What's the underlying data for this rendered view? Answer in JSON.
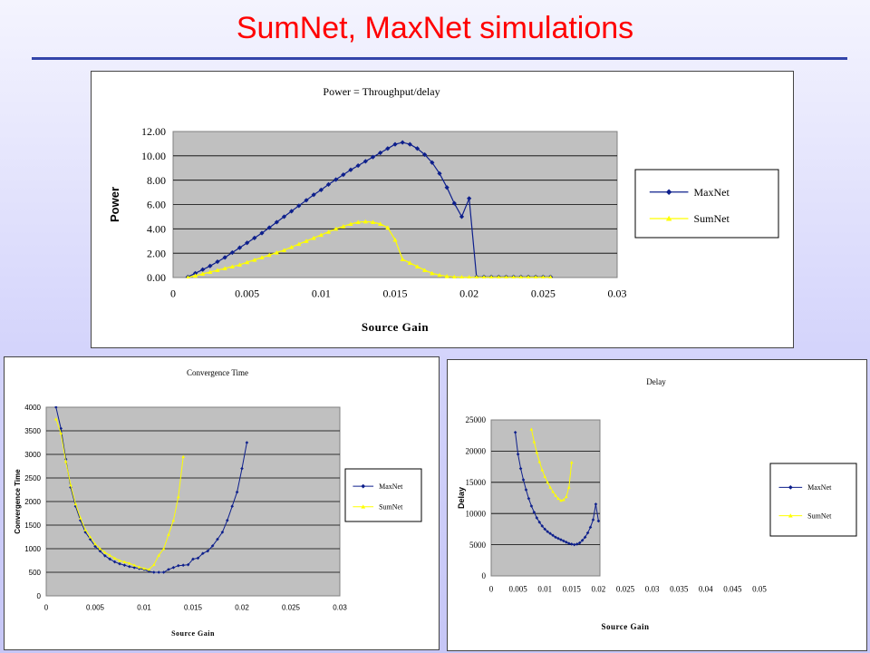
{
  "slide": {
    "title": "SumNet, MaxNet simulations"
  },
  "colors": {
    "maxnet": "#0d1f8c",
    "sumnet": "#ffff00",
    "plot_bg": "#c0c0c0"
  },
  "chart_data": [
    {
      "id": "power",
      "type": "line",
      "title": "Power = Throughput/delay",
      "xlabel": "Source Gain",
      "ylabel": "Power",
      "xlim": [
        0,
        0.03
      ],
      "ylim": [
        0,
        12
      ],
      "xticks": [
        "0",
        "0.005",
        "0.01",
        "0.015",
        "0.02",
        "0.025",
        "0.03"
      ],
      "yticks": [
        "0.00",
        "2.00",
        "4.00",
        "6.00",
        "8.00",
        "10.00",
        "12.00"
      ],
      "grid": true,
      "legend": "right",
      "series": [
        {
          "name": "MaxNet",
          "x": [
            0.001,
            0.0015,
            0.002,
            0.0025,
            0.003,
            0.0035,
            0.004,
            0.0045,
            0.005,
            0.0055,
            0.006,
            0.0065,
            0.007,
            0.0075,
            0.008,
            0.0085,
            0.009,
            0.0095,
            0.01,
            0.0105,
            0.011,
            0.0115,
            0.012,
            0.0125,
            0.013,
            0.0135,
            0.014,
            0.0145,
            0.015,
            0.0155,
            0.016,
            0.0165,
            0.017,
            0.0175,
            0.018,
            0.0185,
            0.019,
            0.0195,
            0.02,
            0.0205,
            0.021,
            0.0215,
            0.022,
            0.0225,
            0.023,
            0.0235,
            0.024,
            0.0245,
            0.025,
            0.0255
          ],
          "y": [
            0.05,
            0.35,
            0.65,
            0.95,
            1.3,
            1.65,
            2.05,
            2.45,
            2.85,
            3.25,
            3.65,
            4.1,
            4.55,
            5.0,
            5.45,
            5.9,
            6.35,
            6.8,
            7.2,
            7.65,
            8.05,
            8.45,
            8.85,
            9.2,
            9.55,
            9.9,
            10.25,
            10.6,
            10.95,
            11.1,
            10.95,
            10.6,
            10.1,
            9.45,
            8.55,
            7.4,
            6.1,
            5.0,
            6.5,
            0.05,
            0.05,
            0.05,
            0.05,
            0.05,
            0.05,
            0.05,
            0.05,
            0.05,
            0.05,
            0.05
          ]
        },
        {
          "name": "SumNet",
          "x": [
            0.001,
            0.0015,
            0.002,
            0.0025,
            0.003,
            0.0035,
            0.004,
            0.0045,
            0.005,
            0.0055,
            0.006,
            0.0065,
            0.007,
            0.0075,
            0.008,
            0.0085,
            0.009,
            0.0095,
            0.01,
            0.0105,
            0.011,
            0.0115,
            0.012,
            0.0125,
            0.013,
            0.0135,
            0.014,
            0.0145,
            0.015,
            0.0155,
            0.016,
            0.0165,
            0.017,
            0.0175,
            0.018,
            0.0185,
            0.019,
            0.0195,
            0.02,
            0.0205,
            0.021,
            0.0215,
            0.022,
            0.0225,
            0.023,
            0.0235,
            0.024,
            0.0245,
            0.025,
            0.0255
          ],
          "y": [
            0.0,
            0.15,
            0.3,
            0.45,
            0.6,
            0.75,
            0.9,
            1.05,
            1.25,
            1.45,
            1.65,
            1.85,
            2.05,
            2.25,
            2.5,
            2.75,
            3.0,
            3.25,
            3.5,
            3.75,
            4.0,
            4.2,
            4.4,
            4.55,
            4.6,
            4.55,
            4.4,
            4.1,
            3.1,
            1.5,
            1.2,
            0.9,
            0.6,
            0.35,
            0.2,
            0.1,
            0.05,
            0.03,
            0.02,
            0.02,
            0.02,
            0.02,
            0.02,
            0.02,
            0.02,
            0.02,
            0.02,
            0.02,
            0.02,
            0.02
          ]
        }
      ]
    },
    {
      "id": "convergence",
      "type": "line",
      "title": "Convergence Time",
      "xlabel": "Source Gain",
      "ylabel": "Convergence Time",
      "xlim": [
        0,
        0.03
      ],
      "ylim": [
        0,
        4000
      ],
      "xticks": [
        "0",
        "0.005",
        "0.01",
        "0.015",
        "0.02",
        "0.025",
        "0.03"
      ],
      "yticks": [
        "0",
        "500",
        "1000",
        "1500",
        "2000",
        "2500",
        "3000",
        "3500",
        "4000"
      ],
      "grid": true,
      "legend": "right",
      "series": [
        {
          "name": "MaxNet",
          "x": [
            0.001,
            0.0015,
            0.002,
            0.0025,
            0.003,
            0.0035,
            0.004,
            0.0045,
            0.005,
            0.0055,
            0.006,
            0.0065,
            0.007,
            0.0075,
            0.008,
            0.0085,
            0.009,
            0.0095,
            0.01,
            0.0105,
            0.011,
            0.0115,
            0.012,
            0.0125,
            0.013,
            0.0135,
            0.014,
            0.0145,
            0.015,
            0.0155,
            0.016,
            0.0165,
            0.017,
            0.0175,
            0.018,
            0.0185,
            0.019,
            0.0195,
            0.02,
            0.0205
          ],
          "y": [
            4000,
            3550,
            2900,
            2300,
            1900,
            1600,
            1350,
            1200,
            1050,
            950,
            850,
            780,
            720,
            680,
            650,
            620,
            600,
            580,
            560,
            520,
            500,
            500,
            500,
            560,
            600,
            640,
            650,
            660,
            780,
            800,
            900,
            950,
            1060,
            1200,
            1350,
            1600,
            1900,
            2200,
            2700,
            3250
          ]
        },
        {
          "name": "SumNet",
          "x": [
            0.001,
            0.0015,
            0.002,
            0.0025,
            0.003,
            0.0035,
            0.004,
            0.0045,
            0.005,
            0.0055,
            0.006,
            0.0065,
            0.007,
            0.0075,
            0.008,
            0.0085,
            0.009,
            0.0095,
            0.01,
            0.0105,
            0.011,
            0.0115,
            0.012,
            0.0125,
            0.013,
            0.0135,
            0.014
          ],
          "y": [
            3750,
            3450,
            2850,
            2350,
            1950,
            1650,
            1400,
            1250,
            1100,
            1000,
            920,
            860,
            800,
            750,
            720,
            690,
            650,
            610,
            580,
            560,
            660,
            860,
            1000,
            1300,
            1600,
            2100,
            2950
          ]
        }
      ]
    },
    {
      "id": "delay",
      "type": "line",
      "title": "Delay",
      "xlabel": "Source Gain",
      "ylabel": "Delay",
      "xlim": [
        0,
        0.05
      ],
      "ylim": [
        0,
        25000
      ],
      "xticks": [
        "0",
        "0.005",
        "0.01",
        "0.015",
        "0.02",
        "0.025",
        "0.03",
        "0.035",
        "0.04",
        "0.045",
        "0.05"
      ],
      "yticks": [
        "0",
        "5000",
        "10000",
        "15000",
        "20000",
        "25000"
      ],
      "grid": true,
      "legend": "right",
      "series": [
        {
          "name": "MaxNet",
          "x": [
            0.0045,
            0.005,
            0.0055,
            0.006,
            0.0065,
            0.007,
            0.0075,
            0.008,
            0.0085,
            0.009,
            0.0095,
            0.01,
            0.0105,
            0.011,
            0.0115,
            0.012,
            0.0125,
            0.013,
            0.0135,
            0.014,
            0.0145,
            0.015,
            0.0155,
            0.016,
            0.0165,
            0.017,
            0.0175,
            0.018,
            0.0185,
            0.019,
            0.0195,
            0.02
          ],
          "y": [
            23000,
            19500,
            17200,
            15400,
            13800,
            12400,
            11200,
            10200,
            9300,
            8600,
            8000,
            7500,
            7100,
            6800,
            6500,
            6200,
            6000,
            5800,
            5600,
            5400,
            5200,
            5100,
            5000,
            5100,
            5300,
            5700,
            6200,
            6900,
            7800,
            9000,
            11500,
            8800
          ]
        },
        {
          "name": "SumNet",
          "x": [
            0.0075,
            0.008,
            0.0085,
            0.009,
            0.0095,
            0.01,
            0.0105,
            0.011,
            0.0115,
            0.012,
            0.0125,
            0.013,
            0.0135,
            0.014,
            0.0145,
            0.015
          ],
          "y": [
            23500,
            21500,
            19800,
            18300,
            17000,
            15900,
            15000,
            14200,
            13500,
            12900,
            12400,
            12100,
            12200,
            12700,
            14200,
            18200
          ]
        }
      ]
    }
  ]
}
